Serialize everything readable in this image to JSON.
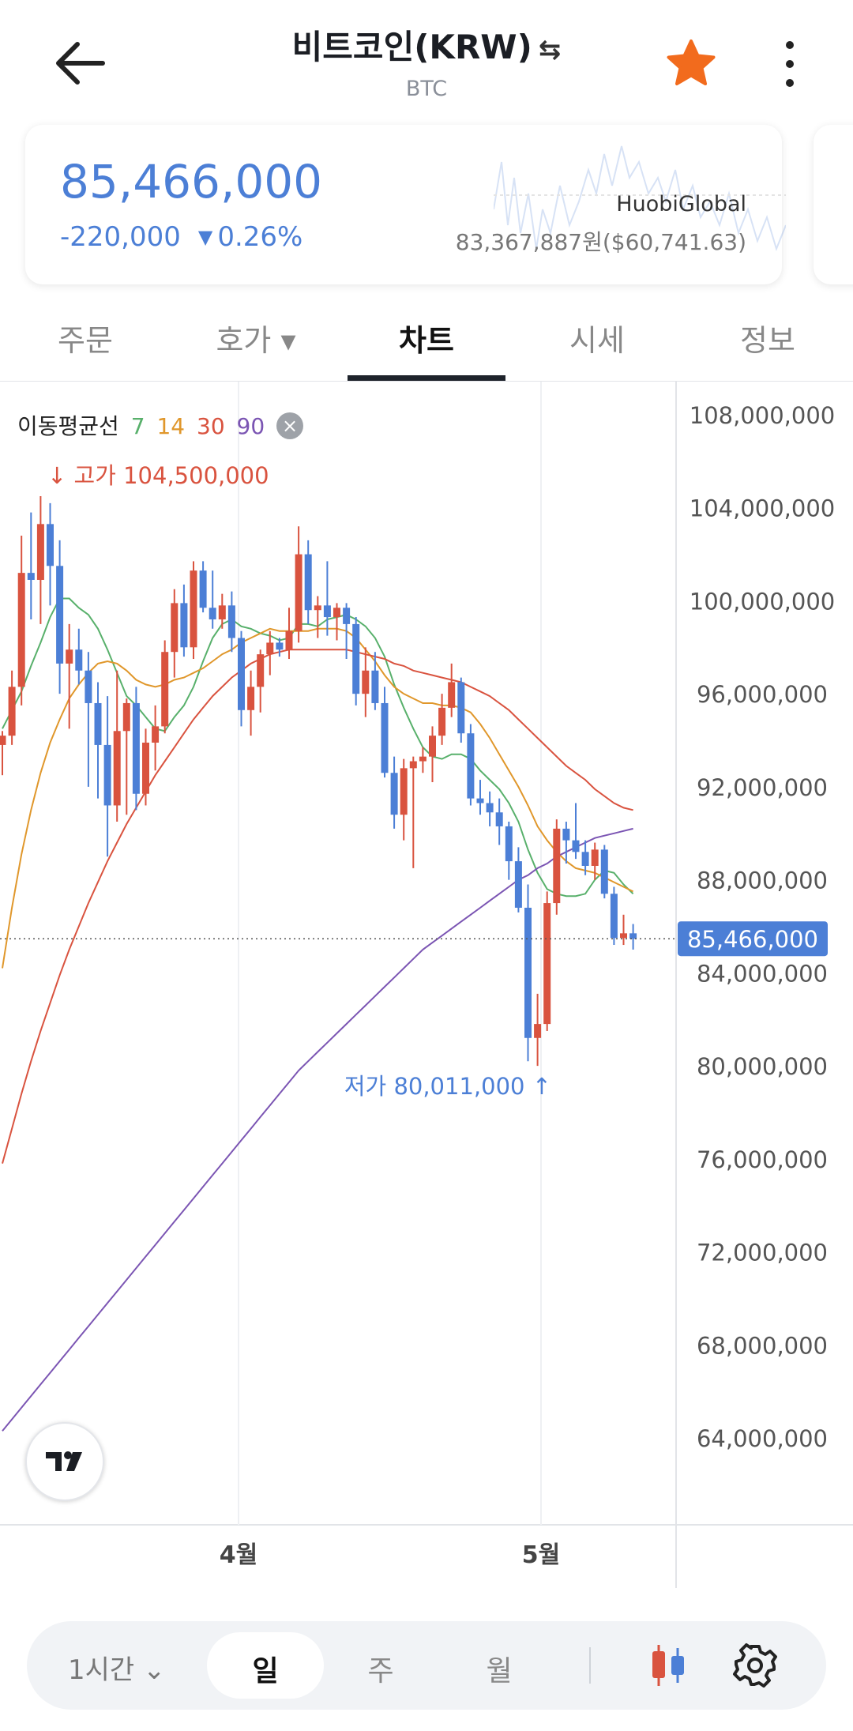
{
  "header": {
    "title": "비트코인(KRW)",
    "swap_icon": "⇆",
    "subtitle": "BTC"
  },
  "price_card": {
    "price": "85,466,000",
    "change": "-220,000",
    "change_dir_icon": "▼",
    "change_pct": "0.26%",
    "exchange": "HuobiGlobal",
    "exchange_price": "83,367,887원($60,741.63)"
  },
  "tabs": [
    {
      "label": "주문"
    },
    {
      "label": "호가 ▾"
    },
    {
      "label": "차트"
    },
    {
      "label": "시세"
    },
    {
      "label": "정보"
    }
  ],
  "colors": {
    "up": "#d9533f",
    "down": "#4c7fd6",
    "ma7": "#58b06b",
    "ma14": "#e0972b",
    "ma30": "#d9533f",
    "ma90": "#7b55b3"
  },
  "ma_legend": {
    "label": "이동평균선",
    "periods": [
      "7",
      "14",
      "30",
      "90"
    ],
    "close_icon": "×"
  },
  "chart_data": {
    "type": "candlestick",
    "y_axis": {
      "ticks": [
        "108,000,000",
        "104,000,000",
        "100,000,000",
        "96,000,000",
        "92,000,000",
        "88,000,000",
        "84,000,000",
        "80,000,000",
        "76,000,000",
        "72,000,000",
        "68,000,000",
        "64,000,000"
      ],
      "ylim": [
        59000000,
        109000000
      ]
    },
    "x_axis": {
      "ticks": [
        "4월",
        "5월"
      ]
    },
    "current_price": 85466000,
    "current_price_label": "85,466,000",
    "high_label": "고가 104,500,000",
    "low_label": "저가 80,011,000",
    "candles": [
      [
        93800000,
        94400000,
        92500000,
        94200000
      ],
      [
        94200000,
        97000000,
        93800000,
        96300000
      ],
      [
        96300000,
        102800000,
        95500000,
        101200000
      ],
      [
        101200000,
        103800000,
        99200000,
        100900000
      ],
      [
        100900000,
        104500000,
        99000000,
        103300000
      ],
      [
        103300000,
        104200000,
        99800000,
        101500000
      ],
      [
        101500000,
        102600000,
        96000000,
        97300000
      ],
      [
        97300000,
        99000000,
        94500000,
        97900000
      ],
      [
        97900000,
        98800000,
        96400000,
        97000000
      ],
      [
        97000000,
        97800000,
        92000000,
        95600000
      ],
      [
        95600000,
        96500000,
        91500000,
        93800000
      ],
      [
        93800000,
        95900000,
        89000000,
        91200000
      ],
      [
        91200000,
        97000000,
        90500000,
        94400000
      ],
      [
        94400000,
        95800000,
        90800000,
        95600000
      ],
      [
        95600000,
        96300000,
        91000000,
        91700000
      ],
      [
        91700000,
        94500000,
        91200000,
        93900000
      ],
      [
        93900000,
        95500000,
        92700000,
        94600000
      ],
      [
        94600000,
        98300000,
        94300000,
        97800000
      ],
      [
        97800000,
        100500000,
        96700000,
        99900000
      ],
      [
        99900000,
        100700000,
        97600000,
        98000000
      ],
      [
        98000000,
        101700000,
        97500000,
        101300000
      ],
      [
        101300000,
        101700000,
        99500000,
        99700000
      ],
      [
        99700000,
        101300000,
        98800000,
        99200000
      ],
      [
        99200000,
        100300000,
        98800000,
        99800000
      ],
      [
        99800000,
        100400000,
        97800000,
        98400000
      ],
      [
        98400000,
        98700000,
        94600000,
        95300000
      ],
      [
        95300000,
        97000000,
        94200000,
        96300000
      ],
      [
        96300000,
        97900000,
        95200000,
        97700000
      ],
      [
        97700000,
        98700000,
        96800000,
        98200000
      ],
      [
        98200000,
        98400000,
        97600000,
        97900000
      ],
      [
        97900000,
        99700000,
        97500000,
        98700000
      ],
      [
        98700000,
        103200000,
        98200000,
        102000000
      ],
      [
        102000000,
        102600000,
        99000000,
        99600000
      ],
      [
        99600000,
        100200000,
        98400000,
        99800000
      ],
      [
        99800000,
        101700000,
        98500000,
        99300000
      ],
      [
        99300000,
        99900000,
        98300000,
        99700000
      ],
      [
        99700000,
        99900000,
        97500000,
        99000000
      ],
      [
        99000000,
        99300000,
        95500000,
        96000000
      ],
      [
        96000000,
        98000000,
        95000000,
        97000000
      ],
      [
        97000000,
        97800000,
        95300000,
        95600000
      ],
      [
        95600000,
        96300000,
        92400000,
        92600000
      ],
      [
        92600000,
        93300000,
        90200000,
        90800000
      ],
      [
        90800000,
        93200000,
        89700000,
        92800000
      ],
      [
        92800000,
        93300000,
        88500000,
        93100000
      ],
      [
        93100000,
        93700000,
        92600000,
        93300000
      ],
      [
        93300000,
        94600000,
        92200000,
        94200000
      ],
      [
        94200000,
        96000000,
        93800000,
        95400000
      ],
      [
        95400000,
        97300000,
        95000000,
        96500000
      ],
      [
        96500000,
        96700000,
        93900000,
        94300000
      ],
      [
        94300000,
        94700000,
        91200000,
        91500000
      ],
      [
        91500000,
        92300000,
        90800000,
        91300000
      ],
      [
        91300000,
        91800000,
        90300000,
        90900000
      ],
      [
        90900000,
        91500000,
        89500000,
        90300000
      ],
      [
        90300000,
        90500000,
        88000000,
        88800000
      ],
      [
        88800000,
        89400000,
        86600000,
        86800000
      ],
      [
        86800000,
        87800000,
        80200000,
        81200000
      ],
      [
        81200000,
        83100000,
        80000000,
        81800000
      ],
      [
        81800000,
        87500000,
        81500000,
        87000000
      ],
      [
        87000000,
        90600000,
        86500000,
        90200000
      ],
      [
        90200000,
        90500000,
        88700000,
        89700000
      ],
      [
        89700000,
        91300000,
        88900000,
        89200000
      ],
      [
        89200000,
        89700000,
        88200000,
        88600000
      ],
      [
        88600000,
        89600000,
        88000000,
        89300000
      ],
      [
        89300000,
        89500000,
        87200000,
        87400000
      ],
      [
        87400000,
        87700000,
        85200000,
        85500000
      ],
      [
        85500000,
        86500000,
        85200000,
        85700000
      ],
      [
        85700000,
        86100000,
        85000000,
        85466000
      ]
    ],
    "ma_lines": [
      {
        "period": 7,
        "color": "#58b06b",
        "y": [
          94500000,
          95300000,
          96100000,
          97200000,
          98200000,
          99300000,
          100100000,
          100100000,
          99700000,
          99400000,
          98800000,
          97900000,
          96900000,
          95900000,
          95500000,
          95000000,
          94500000,
          94400000,
          95000000,
          95500000,
          96300000,
          97400000,
          98400000,
          99000000,
          99200000,
          98900000,
          98800000,
          98600000,
          98500000,
          98300000,
          98400000,
          99000000,
          99000000,
          98900000,
          99200000,
          99300000,
          99400000,
          99200000,
          98900000,
          98400000,
          97600000,
          96400000,
          95400000,
          94500000,
          93700000,
          93300000,
          93200000,
          93400000,
          93400000,
          93200000,
          92700000,
          92300000,
          91900000,
          91300000,
          90500000,
          89300000,
          88300000,
          87600000,
          87400000,
          87300000,
          87300000,
          87400000,
          88000000,
          88400000,
          88300000,
          87800000,
          87400000
        ]
      },
      {
        "period": 14,
        "color": "#e0972b",
        "y": [
          84200000,
          86800000,
          89100000,
          91000000,
          92600000,
          93900000,
          94900000,
          95800000,
          96400000,
          96900000,
          97300000,
          97400000,
          97300000,
          97000000,
          96600000,
          96400000,
          96300000,
          96400000,
          96600000,
          96700000,
          96900000,
          97100000,
          97400000,
          97700000,
          97900000,
          98200000,
          98400000,
          98600000,
          98800000,
          98700000,
          98700000,
          98700000,
          98700000,
          98800000,
          98800000,
          98800000,
          98700000,
          98400000,
          97900000,
          97400000,
          96800000,
          96300000,
          96000000,
          95800000,
          95600000,
          95600000,
          95500000,
          95500000,
          95400000,
          95200000,
          94700000,
          94100000,
          93400000,
          92700000,
          92000000,
          91200000,
          90300000,
          89700000,
          89200000,
          88800000,
          88500000,
          88400000,
          88300000,
          88100000,
          87900000,
          87700000,
          87500000
        ]
      },
      {
        "period": 30,
        "color": "#d9533f",
        "y": [
          75800000,
          77300000,
          78800000,
          80200000,
          81500000,
          82700000,
          83900000,
          85000000,
          86000000,
          87000000,
          87900000,
          88800000,
          89600000,
          90400000,
          91100000,
          91800000,
          92500000,
          93100000,
          93700000,
          94300000,
          94900000,
          95400000,
          95900000,
          96300000,
          96700000,
          97000000,
          97300000,
          97500000,
          97700000,
          97800000,
          97900000,
          97900000,
          97900000,
          97900000,
          97900000,
          97900000,
          97900000,
          97800000,
          97700000,
          97600000,
          97500000,
          97300000,
          97200000,
          97000000,
          96900000,
          96800000,
          96700000,
          96600000,
          96500000,
          96300000,
          96100000,
          95900000,
          95600000,
          95300000,
          94900000,
          94500000,
          94100000,
          93700000,
          93300000,
          92900000,
          92600000,
          92300000,
          91900000,
          91600000,
          91300000,
          91100000,
          91000000
        ]
      },
      {
        "period": 90,
        "color": "#7b55b3",
        "y": [
          64300000,
          64800000,
          65300000,
          65800000,
          66300000,
          66800000,
          67300000,
          67800000,
          68300000,
          68800000,
          69300000,
          69800000,
          70300000,
          70800000,
          71300000,
          71800000,
          72300000,
          72800000,
          73300000,
          73800000,
          74300000,
          74800000,
          75300000,
          75800000,
          76300000,
          76800000,
          77300000,
          77800000,
          78300000,
          78800000,
          79300000,
          79800000,
          80200000,
          80600000,
          81000000,
          81400000,
          81800000,
          82200000,
          82600000,
          83000000,
          83400000,
          83800000,
          84200000,
          84600000,
          85000000,
          85300000,
          85600000,
          85900000,
          86200000,
          86500000,
          86800000,
          87100000,
          87400000,
          87700000,
          88000000,
          88200000,
          88500000,
          88700000,
          89000000,
          89200000,
          89400000,
          89600000,
          89800000,
          89900000,
          90000000,
          90100000,
          90200000
        ]
      }
    ]
  },
  "bottom_bar": {
    "interval": "1시간 ⌄",
    "day": "일",
    "week": "주",
    "month": "월"
  }
}
